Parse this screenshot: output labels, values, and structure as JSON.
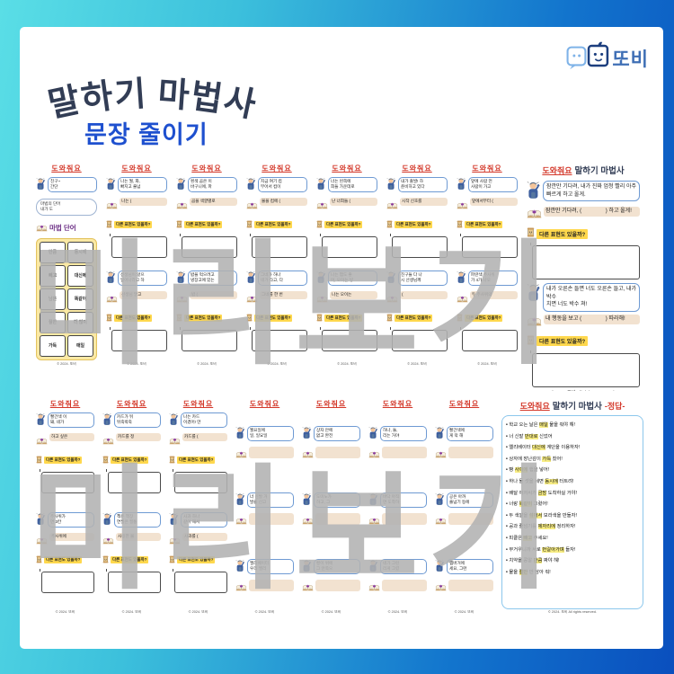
{
  "header": {
    "title": "말하기 마법사",
    "subtitle": "문장 줄이기",
    "logo_text": "또비"
  },
  "watermark": {
    "text": "미리보기"
  },
  "labels": {
    "help_title": "도와줘요",
    "prompt": "다른 표현도 있을까?",
    "magic_header": "마법 단어"
  },
  "footer": {
    "short": "© 2024. 또비",
    "full": "© 2024. 또비 All rights reserved."
  },
  "grid": {
    "row1": {
      "intro_card": {
        "bubble": [
          "친구~",
          "간단"
        ],
        "pill": [
          "마법의 단어",
          "내가 도"
        ],
        "words": [
          [
            "만큼",
            "동시에"
          ],
          [
            "빼고",
            "대신에"
          ],
          [
            "남은",
            "똑같이"
          ],
          [
            "절반",
            "더 많이"
          ],
          [
            "가득",
            "매일"
          ]
        ]
      },
      "question_cards": [
        {
          "blocks": [
            {
              "bubble": [
                "나는 월, 화,",
                "빠지고 줄넘"
              ],
              "answer": "나는 ("
            },
            {
              "bubble": [
                "선생님이 앉으",
                "일어나라고 하"
              ],
              "answer": "선생님 말고"
            }
          ]
        },
        {
          "blocks": [
            {
              "bubble": [
                "흰색 곰은 이",
                "바구니에, 파"
              ],
              "answer": "곰을 색깔별로"
            },
            {
              "bubble": [
                "밥을 먹으려고",
                "냉장고에 있는"
              ],
              "answer": "밥 ("
            }
          ]
        },
        {
          "blocks": [
            {
              "bubble": [
                "지금 여기 컵",
                "부어서 컵이"
              ],
              "answer": "물을 컵에 ("
            },
            {
              "bubble": [
                "그네가 하나",
                "네가 타고, 다"
              ],
              "answer": "그네를 한 번"
            }
          ]
        },
        {
          "blocks": [
            {
              "bubble": [
                "너는 왼쪽에",
                "희들 가운데로"
              ],
              "answer": "난 너희들 ("
            },
            {
              "bubble": [
                "나는 햄도 좋",
                "어, 오이는 넣"
              ],
              "answer": "나는 오이는"
            }
          ]
        },
        {
          "blocks": [
            {
              "bubble": [
                "내가 출발! 하",
                "준비하고 있다"
              ],
              "answer": "시작 신호를"
            },
            {
              "bubble": [
                "친구들 다 나",
                "시 선생님께"
              ],
              "answer": "("
            }
          ]
        },
        {
          "blocks": [
            {
              "bubble": [
                "앞에 사람 먼",
                "사람이 가고"
              ],
              "answer": "앞에서부터 ("
            },
            {
              "bubble": [
                "파란색 주사위",
                "가 4가 나오"
              ],
              "answer": "두 주사위의"
            }
          ]
        }
      ],
      "featured_card": {
        "title_navy": "말하기 마법사",
        "blocks": [
          {
            "bubble": [
              "잠깐만 기다려, 내가 진짜 엄청 빨리 아주",
              "빠르게 하고 올게."
            ],
            "answer": "잠깐만 기다려, (                ) 하고 올게!"
          },
          {
            "bubble": [
              "내가 오른손 들면 너도 오른손 들고, 내가 박수",
              "치면 너도 박수 쳐!"
            ],
            "answer": "내 행동을 보고 (                ) 따라해!"
          }
        ]
      }
    },
    "row2": {
      "question_cards": [
        {
          "blocks": [
            {
              "bubble": [
                "빨간색 이",
                "돼, 네가"
              ],
              "answer": "하고 싶은"
            },
            {
              "bubble": [
                "주사위가",
                "면 3칸"
              ],
              "answer": "주사위에"
            }
          ]
        },
        {
          "blocks": [
            {
              "bubble": [
                "카드가 뒤",
                "뒤죽박죽"
              ],
              "answer": "카드를 정"
            },
            {
              "bubble": [
                "책은 책장",
                "연필은 필통"
              ],
              "answer": "사용한 물"
            }
          ]
        },
        {
          "blocks": [
            {
              "bubble": [
                "나는 카드",
                "이겼어! 만"
              ],
              "answer": "카드를 ("
            },
            {
              "bubble": [
                "사과 하나",
                "같이 해서"
              ],
              "answer": "사과를 ("
            }
          ]
        }
      ],
      "triple_cards": [
        {
          "blocks": [
            {
              "bubble": [
                "월요일에",
                "일, 일요일"
              ]
            },
            {
              "bubble": [
                "너 신발 거",
                "발을 신고"
              ]
            },
            {
              "bubble": [
                "엘리베이터",
                "우리 엘리"
              ]
            }
          ]
        },
        {
          "blocks": [
            {
              "bubble": [
                "상자 안에",
                "없고 완전"
              ]
            },
            {
              "bubble": [
                "도미노가",
                "하고, 그"
              ]
            },
            {
              "bubble": [
                "빵이 위에",
                "그 안쪽으"
              ]
            }
          ]
        },
        {
          "blocks": [
            {
              "bubble": [
                "하나, 둘,",
                "리는 거야"
              ]
            },
            {
              "bubble": [
                "바닥 아직",
                "면 도착하"
              ]
            },
            {
              "bubble": [
                "네가 그린",
                "리게 그렸"
              ]
            }
          ]
        },
        {
          "blocks": [
            {
              "bubble": [
                "빨간색에",
                "게 막 해"
              ]
            },
            {
              "bubble": [
                "공은 아까",
                "줄넘기 등에"
              ]
            },
            {
              "bubble": [
                "햄버거에",
                "세요, 그런"
              ]
            }
          ]
        }
      ],
      "answer_card": {
        "title_navy": "말하기 마법사",
        "title_tag": "-정답-",
        "items": [
          {
            "pre": "학교 오는 날은 ",
            "hl": "매일",
            "post": " 물을 줘야 해!"
          },
          {
            "pre": "너 신발 ",
            "hl": "반대로",
            "post": " 신었어"
          },
          {
            "pre": "엘리베이터 ",
            "hl": "대신에",
            "post": " 계단을 이용하자!"
          },
          {
            "pre": "상자에 장난감이 ",
            "hl": "가득",
            "post": " 찼어!"
          },
          {
            "pre": "빵 ",
            "hl": "사이에",
            "post": " 햄을 넣어!"
          },
          {
            "pre": "하나 둘 셋을 세면 ",
            "hl": "동시에",
            "post": " 터트려!"
          },
          {
            "pre": "배달 아저씨가 ",
            "hl": "금방",
            "post": " 도착하실 거야!"
          },
          {
            "pre": "너랑 ",
            "hl": "똑같이",
            "post": " 그렸어!"
          },
          {
            "pre": "두 색깔을 ",
            "hl": "섞어서",
            "post": " 보라색을 만들자!"
          },
          {
            "pre": "공과 줄넘기를 ",
            "hl": "제자리에",
            "post": " 정리하자!"
          },
          {
            "pre": "피클은 ",
            "hl": "빼고",
            "post": " 주세요!"
          },
          {
            "pre": "무거우니까 서로 ",
            "hl": "번갈아가며",
            "post": " 들자!"
          },
          {
            "pre": "치약을 콩알 ",
            "hl": "만큼",
            "post": " 짜야 해!"
          },
          {
            "pre": "물을 ",
            "hl": "절반",
            "post": " 만 담아 줘!"
          }
        ]
      }
    }
  },
  "colors": {
    "frame_cyan": "#5adee6",
    "frame_blue": "#0a4fbe",
    "title_navy": "#323d55",
    "subtitle_blue": "#1e50cf",
    "help_red": "#d43a2c",
    "highlight_yellow": "#f7ec82",
    "prompt_yellow": "#ffd84d",
    "watermark_gray": "#b2b2b2"
  }
}
